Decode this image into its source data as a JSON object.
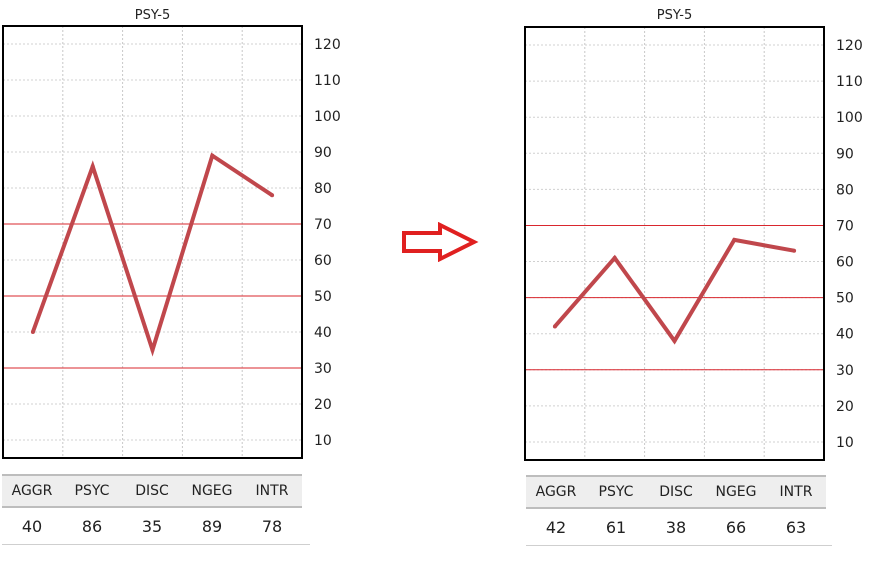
{
  "arrow_color": "#e02020",
  "line_color": "#c0474c",
  "ref_line_color": "#d9272e",
  "chart_data": [
    {
      "type": "line",
      "title": "PSY-5",
      "categories": [
        "AGGR",
        "PSYC",
        "DISC",
        "NGEG",
        "INTR"
      ],
      "values": [
        40,
        86,
        35,
        89,
        78
      ],
      "ylim": [
        5,
        125
      ],
      "yticks": [
        10,
        20,
        30,
        40,
        50,
        60,
        70,
        80,
        90,
        100,
        110,
        120
      ],
      "reference_lines": [
        30,
        50,
        70
      ],
      "grid": true,
      "table_values": [
        "40",
        "86",
        "35",
        "89",
        "78"
      ]
    },
    {
      "type": "line",
      "title": "PSY-5",
      "categories": [
        "AGGR",
        "PSYC",
        "DISC",
        "NGEG",
        "INTR"
      ],
      "values": [
        42,
        61,
        38,
        66,
        63
      ],
      "ylim": [
        5,
        125
      ],
      "yticks": [
        10,
        20,
        30,
        40,
        50,
        60,
        70,
        80,
        90,
        100,
        110,
        120
      ],
      "reference_lines": [
        30,
        50,
        70
      ],
      "grid": true,
      "table_values": [
        "42",
        "61",
        "38",
        "66",
        "63"
      ]
    }
  ]
}
